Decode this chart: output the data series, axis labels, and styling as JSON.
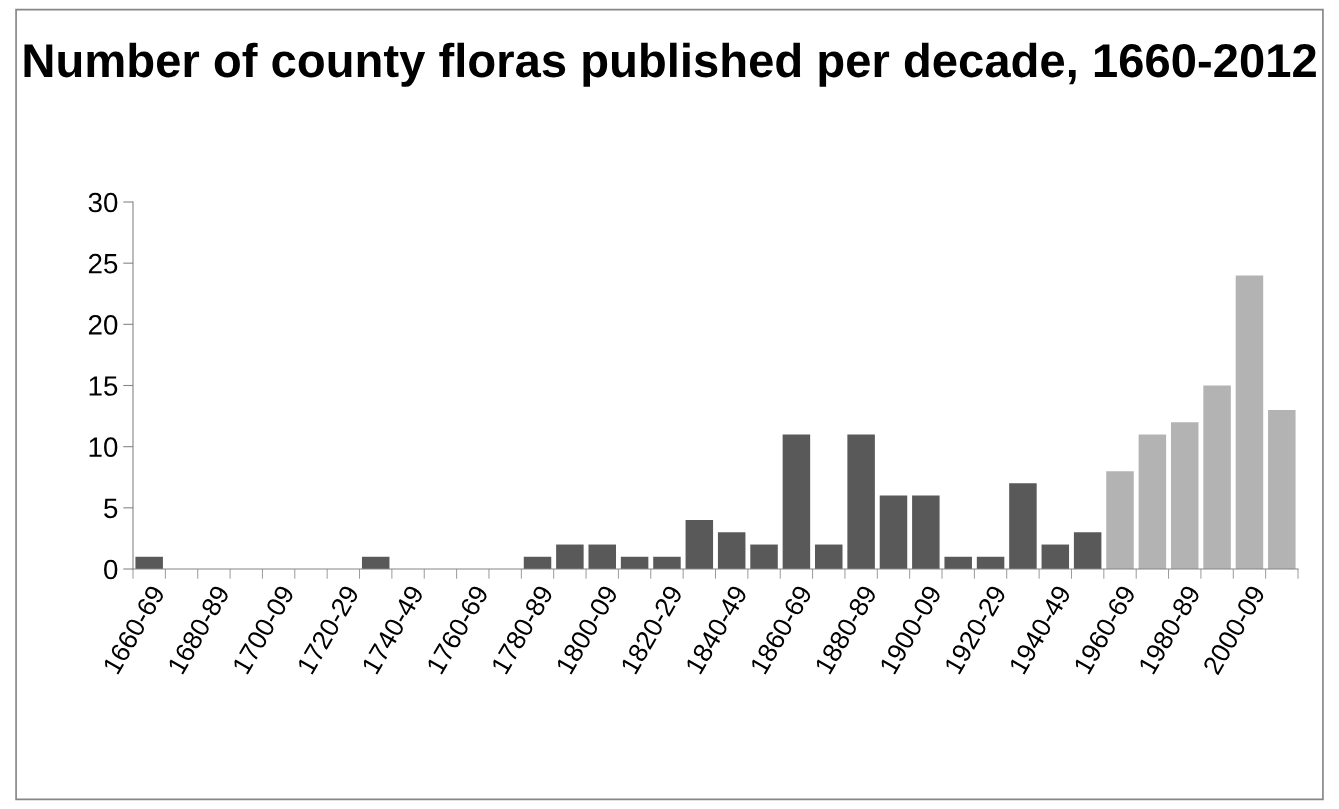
{
  "chart_data": {
    "type": "bar",
    "title": "Number of county floras published per decade, 1660-2012",
    "categories": [
      "1660-69",
      null,
      "1680-89",
      null,
      "1700-09",
      null,
      "1720-29",
      null,
      "1740-49",
      null,
      "1760-69",
      null,
      "1780-89",
      null,
      "1800-09",
      null,
      "1820-29",
      null,
      "1840-49",
      null,
      "1860-69",
      null,
      "1880-89",
      null,
      "1900-09",
      null,
      "1920-29",
      null,
      "1940-49",
      null,
      "1960-69",
      null,
      "1980-89",
      null,
      "2000-09",
      null
    ],
    "values": [
      1,
      0,
      0,
      0,
      0,
      0,
      0,
      1,
      0,
      0,
      0,
      0,
      1,
      2,
      2,
      1,
      1,
      4,
      3,
      2,
      11,
      2,
      11,
      6,
      6,
      1,
      1,
      7,
      2,
      3,
      8,
      11,
      12,
      15,
      24,
      13
    ],
    "colors": [
      "#595959",
      "#595959",
      "#595959",
      "#595959",
      "#595959",
      "#595959",
      "#595959",
      "#595959",
      "#595959",
      "#595959",
      "#595959",
      "#595959",
      "#595959",
      "#595959",
      "#595959",
      "#595959",
      "#595959",
      "#595959",
      "#595959",
      "#595959",
      "#595959",
      "#595959",
      "#595959",
      "#595959",
      "#595959",
      "#595959",
      "#595959",
      "#595959",
      "#595959",
      "#595959",
      "#b3b3b3",
      "#b3b3b3",
      "#b3b3b3",
      "#b3b3b3",
      "#b3b3b3",
      "#b3b3b3"
    ],
    "ylim": [
      0,
      30
    ],
    "yticks": [
      0,
      5,
      10,
      15,
      20,
      25,
      30
    ],
    "grid": false,
    "legend": false
  }
}
